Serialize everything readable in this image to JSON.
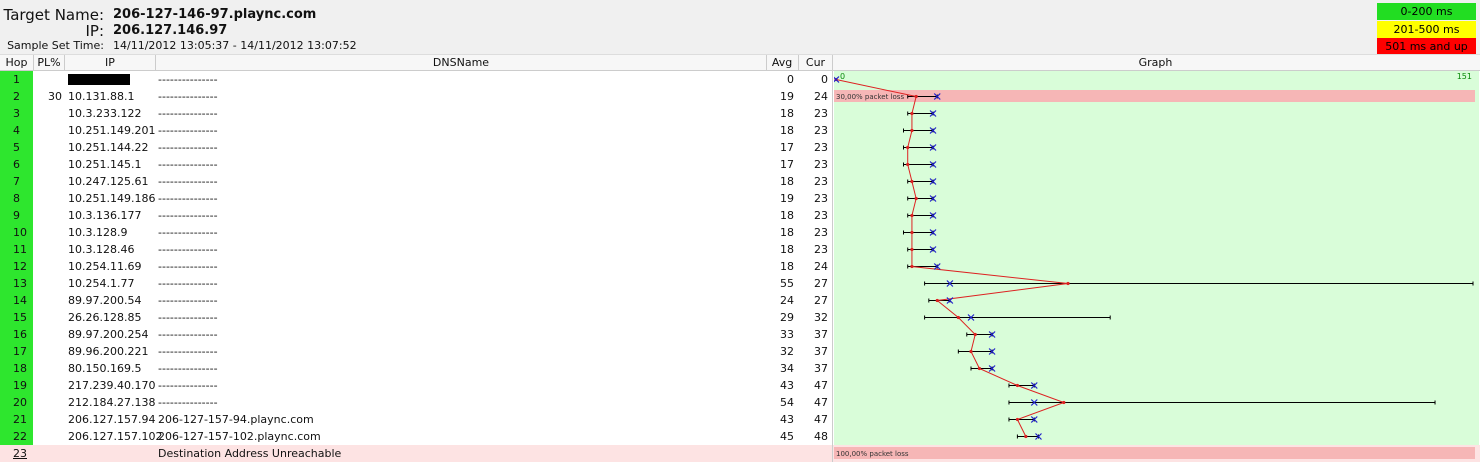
{
  "header": {
    "target_label": "Target Name:",
    "target_value": "206-127-146-97.plaync.com",
    "ip_label": "IP:",
    "ip_value": "206.127.146.97",
    "sample_label": "Sample Set Time:",
    "sample_value": "14/11/2012 13:05:37 - 14/11/2012 13:07:52"
  },
  "legend": [
    {
      "label": "0-200 ms",
      "color": "#22dd22"
    },
    {
      "label": "201-500 ms",
      "color": "#ffff00"
    },
    {
      "label": "501 ms and up",
      "color": "#ff0000"
    }
  ],
  "columns": {
    "hop": "Hop",
    "pl": "PL%",
    "ip": "IP",
    "dns": "DNSName",
    "avg": "Avg",
    "cur": "Cur",
    "graph": "Graph"
  },
  "rows": [
    {
      "hop": "1",
      "pl": "",
      "ip": "",
      "dns": "---------------",
      "avg": "0",
      "cur": "0",
      "redacted": true
    },
    {
      "hop": "2",
      "pl": "30",
      "ip": "10.131.88.1",
      "dns": "---------------",
      "avg": "19",
      "cur": "24"
    },
    {
      "hop": "3",
      "pl": "",
      "ip": "10.3.233.122",
      "dns": "---------------",
      "avg": "18",
      "cur": "23"
    },
    {
      "hop": "4",
      "pl": "",
      "ip": "10.251.149.201",
      "dns": "---------------",
      "avg": "18",
      "cur": "23"
    },
    {
      "hop": "5",
      "pl": "",
      "ip": "10.251.144.22",
      "dns": "---------------",
      "avg": "17",
      "cur": "23"
    },
    {
      "hop": "6",
      "pl": "",
      "ip": "10.251.145.1",
      "dns": "---------------",
      "avg": "17",
      "cur": "23"
    },
    {
      "hop": "7",
      "pl": "",
      "ip": "10.247.125.61",
      "dns": "---------------",
      "avg": "18",
      "cur": "23"
    },
    {
      "hop": "8",
      "pl": "",
      "ip": "10.251.149.186",
      "dns": "---------------",
      "avg": "19",
      "cur": "23"
    },
    {
      "hop": "9",
      "pl": "",
      "ip": "10.3.136.177",
      "dns": "---------------",
      "avg": "18",
      "cur": "23"
    },
    {
      "hop": "10",
      "pl": "",
      "ip": "10.3.128.9",
      "dns": "---------------",
      "avg": "18",
      "cur": "23"
    },
    {
      "hop": "11",
      "pl": "",
      "ip": "10.3.128.46",
      "dns": "---------------",
      "avg": "18",
      "cur": "23"
    },
    {
      "hop": "12",
      "pl": "",
      "ip": "10.254.11.69",
      "dns": "---------------",
      "avg": "18",
      "cur": "24"
    },
    {
      "hop": "13",
      "pl": "",
      "ip": "10.254.1.77",
      "dns": "---------------",
      "avg": "55",
      "cur": "27"
    },
    {
      "hop": "14",
      "pl": "",
      "ip": "89.97.200.54",
      "dns": "---------------",
      "avg": "24",
      "cur": "27"
    },
    {
      "hop": "15",
      "pl": "",
      "ip": "26.26.128.85",
      "dns": "---------------",
      "avg": "29",
      "cur": "32"
    },
    {
      "hop": "16",
      "pl": "",
      "ip": "89.97.200.254",
      "dns": "---------------",
      "avg": "33",
      "cur": "37"
    },
    {
      "hop": "17",
      "pl": "",
      "ip": "89.96.200.221",
      "dns": "---------------",
      "avg": "32",
      "cur": "37"
    },
    {
      "hop": "18",
      "pl": "",
      "ip": "80.150.169.5",
      "dns": "---------------",
      "avg": "34",
      "cur": "37"
    },
    {
      "hop": "19",
      "pl": "",
      "ip": "217.239.40.170",
      "dns": "---------------",
      "avg": "43",
      "cur": "47"
    },
    {
      "hop": "20",
      "pl": "",
      "ip": "212.184.27.138",
      "dns": "---------------",
      "avg": "54",
      "cur": "47"
    },
    {
      "hop": "21",
      "pl": "",
      "ip": "206.127.157.94",
      "dns": "206-127-157-94.plaync.com",
      "avg": "43",
      "cur": "47"
    },
    {
      "hop": "22",
      "pl": "",
      "ip": "206.127.157.102",
      "dns": "206-127-157-102.plaync.com",
      "avg": "45",
      "cur": "48"
    }
  ],
  "last_row": {
    "hop": "23",
    "message": "Destination Address Unreachable",
    "loss_label": "100,00% packet loss"
  },
  "graph": {
    "axis_min_label": "0",
    "axis_max_label": "151",
    "axis_max": 151,
    "loss_label_hop2": "30,00% packet loss",
    "background": "#d9fdd9",
    "loss_color": "#f6b6b6",
    "line_color": "#dd2222",
    "cur_marker_color": "#2020cc",
    "points": [
      {
        "min": 0,
        "avg": 0,
        "max": 0,
        "cur": 0
      },
      {
        "min": 17,
        "avg": 19,
        "max": 24,
        "cur": 24
      },
      {
        "min": 17,
        "avg": 18,
        "max": 23,
        "cur": 23
      },
      {
        "min": 16,
        "avg": 18,
        "max": 23,
        "cur": 23
      },
      {
        "min": 16,
        "avg": 17,
        "max": 23,
        "cur": 23
      },
      {
        "min": 16,
        "avg": 17,
        "max": 23,
        "cur": 23
      },
      {
        "min": 17,
        "avg": 18,
        "max": 23,
        "cur": 23
      },
      {
        "min": 17,
        "avg": 19,
        "max": 23,
        "cur": 23
      },
      {
        "min": 17,
        "avg": 18,
        "max": 23,
        "cur": 23
      },
      {
        "min": 16,
        "avg": 18,
        "max": 23,
        "cur": 23
      },
      {
        "min": 17,
        "avg": 18,
        "max": 23,
        "cur": 23
      },
      {
        "min": 17,
        "avg": 18,
        "max": 24,
        "cur": 24
      },
      {
        "min": 21,
        "avg": 55,
        "max": 151,
        "cur": 27
      },
      {
        "min": 22,
        "avg": 24,
        "max": 27,
        "cur": 27
      },
      {
        "min": 21,
        "avg": 29,
        "max": 65,
        "cur": 32
      },
      {
        "min": 31,
        "avg": 33,
        "max": 37,
        "cur": 37
      },
      {
        "min": 29,
        "avg": 32,
        "max": 37,
        "cur": 37
      },
      {
        "min": 32,
        "avg": 34,
        "max": 37,
        "cur": 37
      },
      {
        "min": 41,
        "avg": 43,
        "max": 47,
        "cur": 47
      },
      {
        "min": 41,
        "avg": 54,
        "max": 142,
        "cur": 47
      },
      {
        "min": 41,
        "avg": 43,
        "max": 47,
        "cur": 47
      },
      {
        "min": 43,
        "avg": 45,
        "max": 48,
        "cur": 48
      }
    ]
  }
}
